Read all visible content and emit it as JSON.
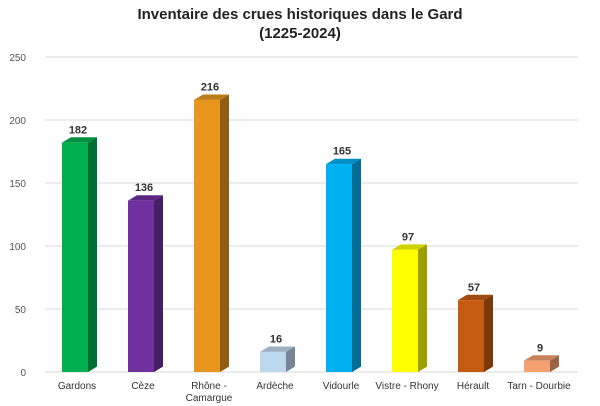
{
  "chart_data": {
    "type": "bar",
    "title_lines": [
      "Inventaire des crues historiques dans le Gard",
      "(1225-2024)"
    ],
    "xlabel": "",
    "ylabel": "",
    "ylim": [
      0,
      250
    ],
    "yticks": [
      0,
      50,
      100,
      150,
      200,
      250
    ],
    "grid": true,
    "legend": "none",
    "categories": [
      [
        "Gardons"
      ],
      [
        "Cèze"
      ],
      [
        "Rhône -",
        "Camargue"
      ],
      [
        "Ardèche"
      ],
      [
        "Vidourle"
      ],
      [
        "Vistre - Rhony"
      ],
      [
        "Hérault"
      ],
      [
        "Tarn - Dourbie"
      ]
    ],
    "values": [
      182,
      136,
      216,
      16,
      165,
      97,
      57,
      9
    ],
    "colors": [
      "#00B050",
      "#7030A0",
      "#E8961E",
      "#BDD7EE",
      "#00B0F0",
      "#FFFF00",
      "#C55A11",
      "#F4A070"
    ]
  }
}
